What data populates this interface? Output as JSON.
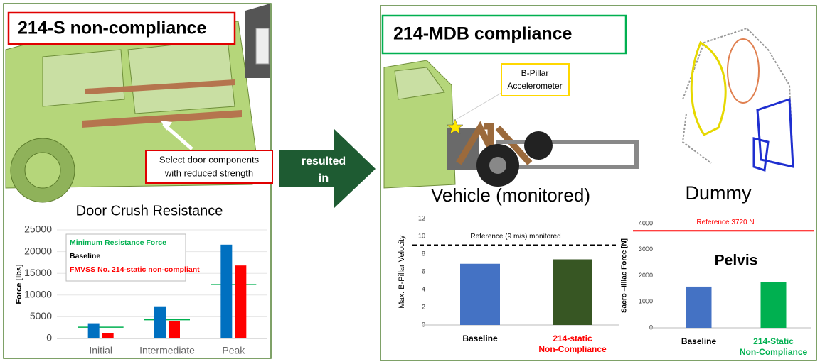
{
  "left_panel": {
    "title": "214-S non-compliance",
    "callout": [
      "Select door components",
      "with reduced strength"
    ]
  },
  "arrow": [
    "resulted",
    "in"
  ],
  "right_panel": {
    "title": "214-MDB compliance",
    "callout": [
      "B-Pillar",
      "Accelerometer"
    ],
    "vehicle_heading": "Vehicle (monitored)",
    "dummy_heading": "Dummy"
  },
  "chart_data": [
    {
      "type": "bar",
      "title": "Door Crush Resistance",
      "y_label": "Force [lbs]",
      "categories": [
        "Initial",
        "Intermediate",
        "Peak"
      ],
      "series": [
        {
          "name": "Minimum Resistance Force",
          "color": "#00b050",
          "marker": "hline",
          "values": [
            2600,
            4300,
            12400
          ]
        },
        {
          "name": "Baseline",
          "color": "#0070c0",
          "values": [
            3500,
            7400,
            21600
          ]
        },
        {
          "name": "FMVSS No. 214-static non-compliant",
          "color": "#ff0000",
          "values": [
            1300,
            4000,
            16800
          ]
        }
      ],
      "ylim": [
        0,
        25000
      ],
      "yticks": [
        0,
        5000,
        10000,
        15000,
        20000,
        25000
      ],
      "grid": true,
      "legend": "top-left"
    },
    {
      "type": "bar",
      "y_label": "Max. B-Pillar Velocity",
      "categories": [
        "Baseline",
        "214-static Non-Compliance"
      ],
      "category_colors": [
        "#000000",
        "#ff0000"
      ],
      "values": [
        6.9,
        7.4
      ],
      "colors": [
        "#4472c4",
        "#375623"
      ],
      "reference": {
        "value": 9,
        "label": "Reference (9 m/s) monitored",
        "color": "#000000",
        "dashed": true
      },
      "ylim": [
        0,
        12
      ],
      "yticks": [
        0,
        2,
        4,
        6,
        8,
        10,
        12
      ],
      "grid": false
    },
    {
      "type": "bar",
      "title": "Pelvis",
      "y_label": "Sacro –Illiac Force [N]",
      "categories": [
        "Baseline",
        "214-Static Non-Compliance"
      ],
      "category_colors": [
        "#000000",
        "#00b050"
      ],
      "values": [
        1580,
        1760
      ],
      "colors": [
        "#4472c4",
        "#00b050"
      ],
      "reference": {
        "value": 3720,
        "label": "Reference 3720 N",
        "color": "#ff0000",
        "dashed": false
      },
      "ylim": [
        0,
        4000
      ],
      "yticks": [
        0,
        1000,
        2000,
        3000,
        4000
      ],
      "grid": false
    }
  ]
}
